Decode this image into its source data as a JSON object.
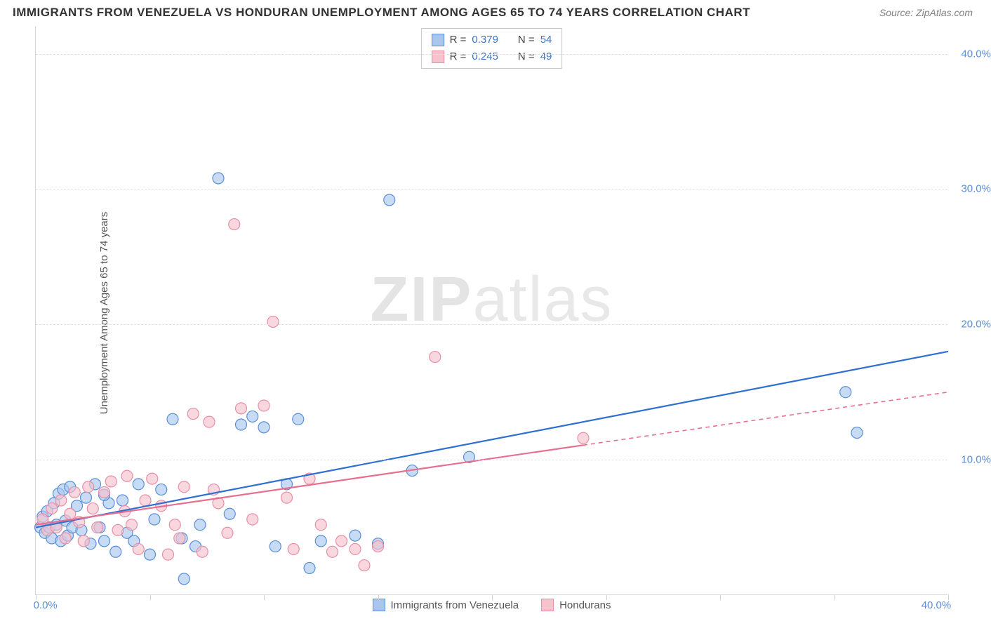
{
  "title": "IMMIGRANTS FROM VENEZUELA VS HONDURAN UNEMPLOYMENT AMONG AGES 65 TO 74 YEARS CORRELATION CHART",
  "source_label": "Source:",
  "source_value": "ZipAtlas.com",
  "ylabel": "Unemployment Among Ages 65 to 74 years",
  "watermark_a": "ZIP",
  "watermark_b": "atlas",
  "chart": {
    "type": "scatter",
    "background_color": "#ffffff",
    "grid_color": "#e0e0e0",
    "axis_color": "#d8d8d8",
    "tick_label_color": "#5a8fd6",
    "xlim": [
      0,
      40
    ],
    "ylim": [
      0,
      42
    ],
    "ytick_values": [
      10,
      20,
      30,
      40
    ],
    "ytick_labels": [
      "10.0%",
      "20.0%",
      "30.0%",
      "40.0%"
    ],
    "xtick_values": [
      0,
      10,
      20,
      30,
      40
    ],
    "xtick_labels": [
      "0.0%",
      "",
      "",
      "",
      "40.0%"
    ],
    "xtick_minor_step": 5,
    "marker_radius": 8,
    "marker_stroke_width": 1.2,
    "trend_line_width": 2.2
  },
  "series": [
    {
      "key": "venezuela",
      "label": "Immigrants from Venezuela",
      "fill": "#a9c7ee",
      "stroke": "#5a8fd6",
      "fill_opacity": 0.65,
      "trend_color": "#2e6fd1",
      "trend_dash": "",
      "trend": {
        "x1": 0,
        "y1": 5.0,
        "x2": 40,
        "y2": 18.0
      },
      "R_label": "R =",
      "R": "0.379",
      "N_label": "N =",
      "N": "54",
      "points": [
        [
          0.2,
          5.0
        ],
        [
          0.3,
          5.8
        ],
        [
          0.4,
          4.6
        ],
        [
          0.5,
          6.2
        ],
        [
          0.6,
          5.0
        ],
        [
          0.7,
          4.2
        ],
        [
          0.8,
          6.8
        ],
        [
          0.9,
          5.2
        ],
        [
          1.0,
          7.5
        ],
        [
          1.1,
          4.0
        ],
        [
          1.2,
          7.8
        ],
        [
          1.3,
          5.5
        ],
        [
          1.4,
          4.4
        ],
        [
          1.5,
          8.0
        ],
        [
          1.6,
          5.0
        ],
        [
          1.8,
          6.6
        ],
        [
          2.0,
          4.8
        ],
        [
          2.2,
          7.2
        ],
        [
          2.4,
          3.8
        ],
        [
          2.6,
          8.2
        ],
        [
          2.8,
          5.0
        ],
        [
          3.0,
          4.0
        ],
        [
          3.2,
          6.8
        ],
        [
          3.5,
          3.2
        ],
        [
          3.8,
          7.0
        ],
        [
          4.0,
          4.6
        ],
        [
          4.3,
          4.0
        ],
        [
          4.5,
          8.2
        ],
        [
          5.0,
          3.0
        ],
        [
          5.2,
          5.6
        ],
        [
          5.5,
          7.8
        ],
        [
          6.0,
          13.0
        ],
        [
          6.4,
          4.2
        ],
        [
          6.5,
          1.2
        ],
        [
          7.0,
          3.6
        ],
        [
          7.2,
          5.2
        ],
        [
          8.0,
          30.8
        ],
        [
          8.5,
          6.0
        ],
        [
          9.0,
          12.6
        ],
        [
          9.5,
          13.2
        ],
        [
          10.0,
          12.4
        ],
        [
          10.5,
          3.6
        ],
        [
          11.0,
          8.2
        ],
        [
          11.5,
          13.0
        ],
        [
          12.0,
          2.0
        ],
        [
          12.5,
          4.0
        ],
        [
          14.0,
          4.4
        ],
        [
          15.0,
          3.8
        ],
        [
          15.5,
          29.2
        ],
        [
          16.5,
          9.2
        ],
        [
          19.0,
          10.2
        ],
        [
          35.5,
          15.0
        ],
        [
          36.0,
          12.0
        ],
        [
          3.0,
          7.4
        ]
      ]
    },
    {
      "key": "hondurans",
      "label": "Hondurans",
      "fill": "#f5c2ce",
      "stroke": "#e98fa5",
      "fill_opacity": 0.65,
      "trend_color": "#e86e8f",
      "trend_dash_solid_until": 24,
      "trend_dash": "6,5",
      "trend": {
        "x1": 0,
        "y1": 5.2,
        "x2": 40,
        "y2": 15.0
      },
      "R_label": "R =",
      "R": "0.245",
      "N_label": "N =",
      "N": "49",
      "points": [
        [
          0.3,
          5.6
        ],
        [
          0.5,
          4.8
        ],
        [
          0.7,
          6.4
        ],
        [
          0.9,
          5.0
        ],
        [
          1.1,
          7.0
        ],
        [
          1.3,
          4.2
        ],
        [
          1.5,
          6.0
        ],
        [
          1.7,
          7.6
        ],
        [
          1.9,
          5.4
        ],
        [
          2.1,
          4.0
        ],
        [
          2.3,
          8.0
        ],
        [
          2.5,
          6.4
        ],
        [
          2.7,
          5.0
        ],
        [
          3.0,
          7.6
        ],
        [
          3.3,
          8.4
        ],
        [
          3.6,
          4.8
        ],
        [
          3.9,
          6.2
        ],
        [
          4.2,
          5.2
        ],
        [
          4.5,
          3.4
        ],
        [
          4.8,
          7.0
        ],
        [
          5.1,
          8.6
        ],
        [
          5.5,
          6.6
        ],
        [
          5.8,
          3.0
        ],
        [
          6.1,
          5.2
        ],
        [
          6.5,
          8.0
        ],
        [
          6.9,
          13.4
        ],
        [
          7.3,
          3.2
        ],
        [
          7.6,
          12.8
        ],
        [
          8.0,
          6.8
        ],
        [
          8.4,
          4.6
        ],
        [
          8.7,
          27.4
        ],
        [
          9.0,
          13.8
        ],
        [
          9.5,
          5.6
        ],
        [
          10.0,
          14.0
        ],
        [
          10.4,
          20.2
        ],
        [
          11.0,
          7.2
        ],
        [
          11.3,
          3.4
        ],
        [
          12.0,
          8.6
        ],
        [
          12.5,
          5.2
        ],
        [
          13.0,
          3.2
        ],
        [
          13.4,
          4.0
        ],
        [
          14.0,
          3.4
        ],
        [
          14.4,
          2.2
        ],
        [
          15.0,
          3.6
        ],
        [
          17.5,
          17.6
        ],
        [
          24.0,
          11.6
        ],
        [
          6.3,
          4.2
        ],
        [
          7.8,
          7.8
        ],
        [
          4.0,
          8.8
        ]
      ]
    }
  ]
}
